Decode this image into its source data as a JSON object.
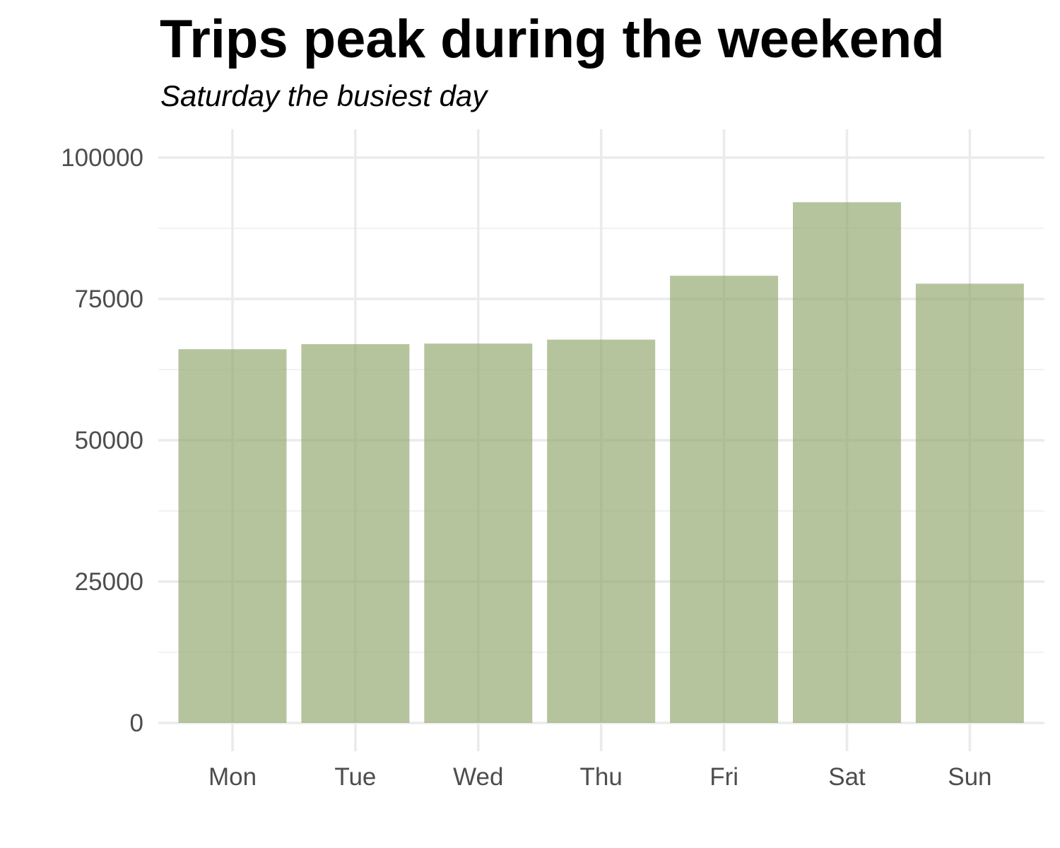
{
  "chart_data": {
    "type": "bar",
    "title": "Trips peak during the weekend",
    "subtitle": "Saturday the busiest day",
    "xlabel": "",
    "ylabel": "",
    "categories": [
      "Mon",
      "Tue",
      "Wed",
      "Thu",
      "Fri",
      "Sat",
      "Sun"
    ],
    "values": [
      66100,
      67000,
      67100,
      67800,
      79100,
      92100,
      77700
    ],
    "ylim": [
      0,
      100000
    ],
    "yticks": [
      0,
      25000,
      50000,
      75000,
      100000
    ],
    "ytick_labels": [
      "0",
      "25000",
      "50000",
      "75000",
      "100000"
    ],
    "grid": true,
    "legend": "none",
    "colors": {
      "bar": "#b5c49c",
      "grid_major": "#ebebeb",
      "grid_minor": "#f2f2f2",
      "tick_text": "#4d4d4d",
      "title_text": "#000000"
    }
  }
}
